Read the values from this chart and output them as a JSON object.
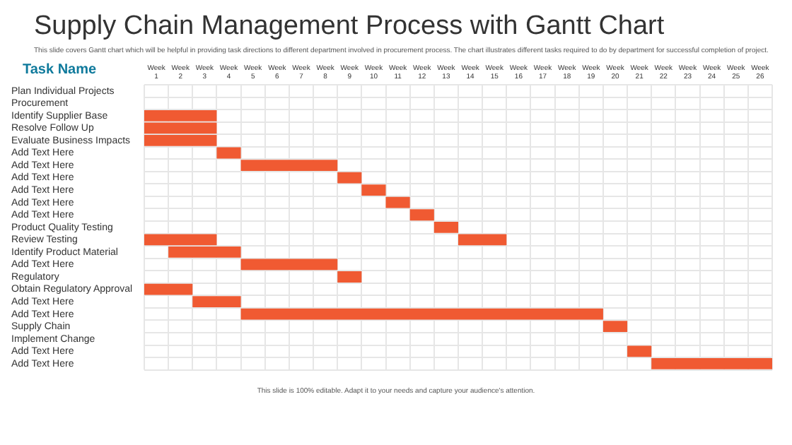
{
  "chart_data": {
    "type": "bar",
    "orientation": "horizontal",
    "title": "Supply Chain Management Process with Gantt Chart",
    "subtitle": "This slide covers Gantt chart which will be helpful in providing task directions to different department involved in procurement process. The chart illustrates different tasks required to do by department for successful completion of project.",
    "ylabel": "Task Name",
    "xlabel": "Week",
    "categories": [
      "Plan Individual Projects",
      "Procurement",
      "Identify Supplier Base",
      "Resolve Follow Up",
      "Evaluate Business Impacts",
      "Add Text Here",
      "Add Text Here",
      "Add Text Here",
      "Add Text Here",
      "Add Text Here",
      "Add Text Here",
      "Product Quality Testing",
      "Review Testing",
      "Identify Product Material",
      "Add Text Here",
      "Regulatory",
      "Obtain Regulatory Approval",
      "Add Text Here",
      "Add Text Here",
      "Supply Chain",
      "Implement Change",
      "Add Text Here",
      "Add Text Here"
    ],
    "series": [
      {
        "color": "#f05a32",
        "base": [
          null,
          null,
          0.5,
          0.5,
          0.5,
          3.5,
          4.5,
          8.5,
          9.5,
          10.5,
          11.5,
          12.5,
          0.5,
          1.5,
          4.5,
          8.5,
          0.5,
          2.5,
          4.5,
          19.5,
          null,
          20.5,
          21.5
        ],
        "values": [
          null,
          null,
          3,
          3,
          3,
          1,
          4,
          1,
          1,
          1,
          1,
          1,
          3,
          3,
          4,
          1,
          2,
          2,
          15,
          1,
          null,
          1,
          5
        ]
      },
      {
        "color": "#f05a32",
        "base": [
          null,
          null,
          null,
          null,
          null,
          null,
          null,
          null,
          null,
          null,
          null,
          null,
          13.5,
          null,
          null,
          null,
          null,
          null,
          null,
          null,
          null,
          null,
          null
        ],
        "values": [
          null,
          null,
          null,
          null,
          null,
          null,
          null,
          null,
          null,
          null,
          null,
          null,
          2,
          null,
          null,
          null,
          null,
          null,
          null,
          null,
          null,
          null,
          null
        ]
      }
    ],
    "xlim": [
      0.5,
      26.5
    ],
    "xticks": [
      1,
      2,
      3,
      4,
      5,
      6,
      7,
      8,
      9,
      10,
      11,
      12,
      13,
      14,
      15,
      16,
      17,
      18,
      19,
      20,
      21,
      22,
      23,
      24,
      25,
      26
    ],
    "grid": true,
    "annotations": [
      "This slide is 100% editable. Adapt it to your needs and capture your audience's attention."
    ]
  }
}
